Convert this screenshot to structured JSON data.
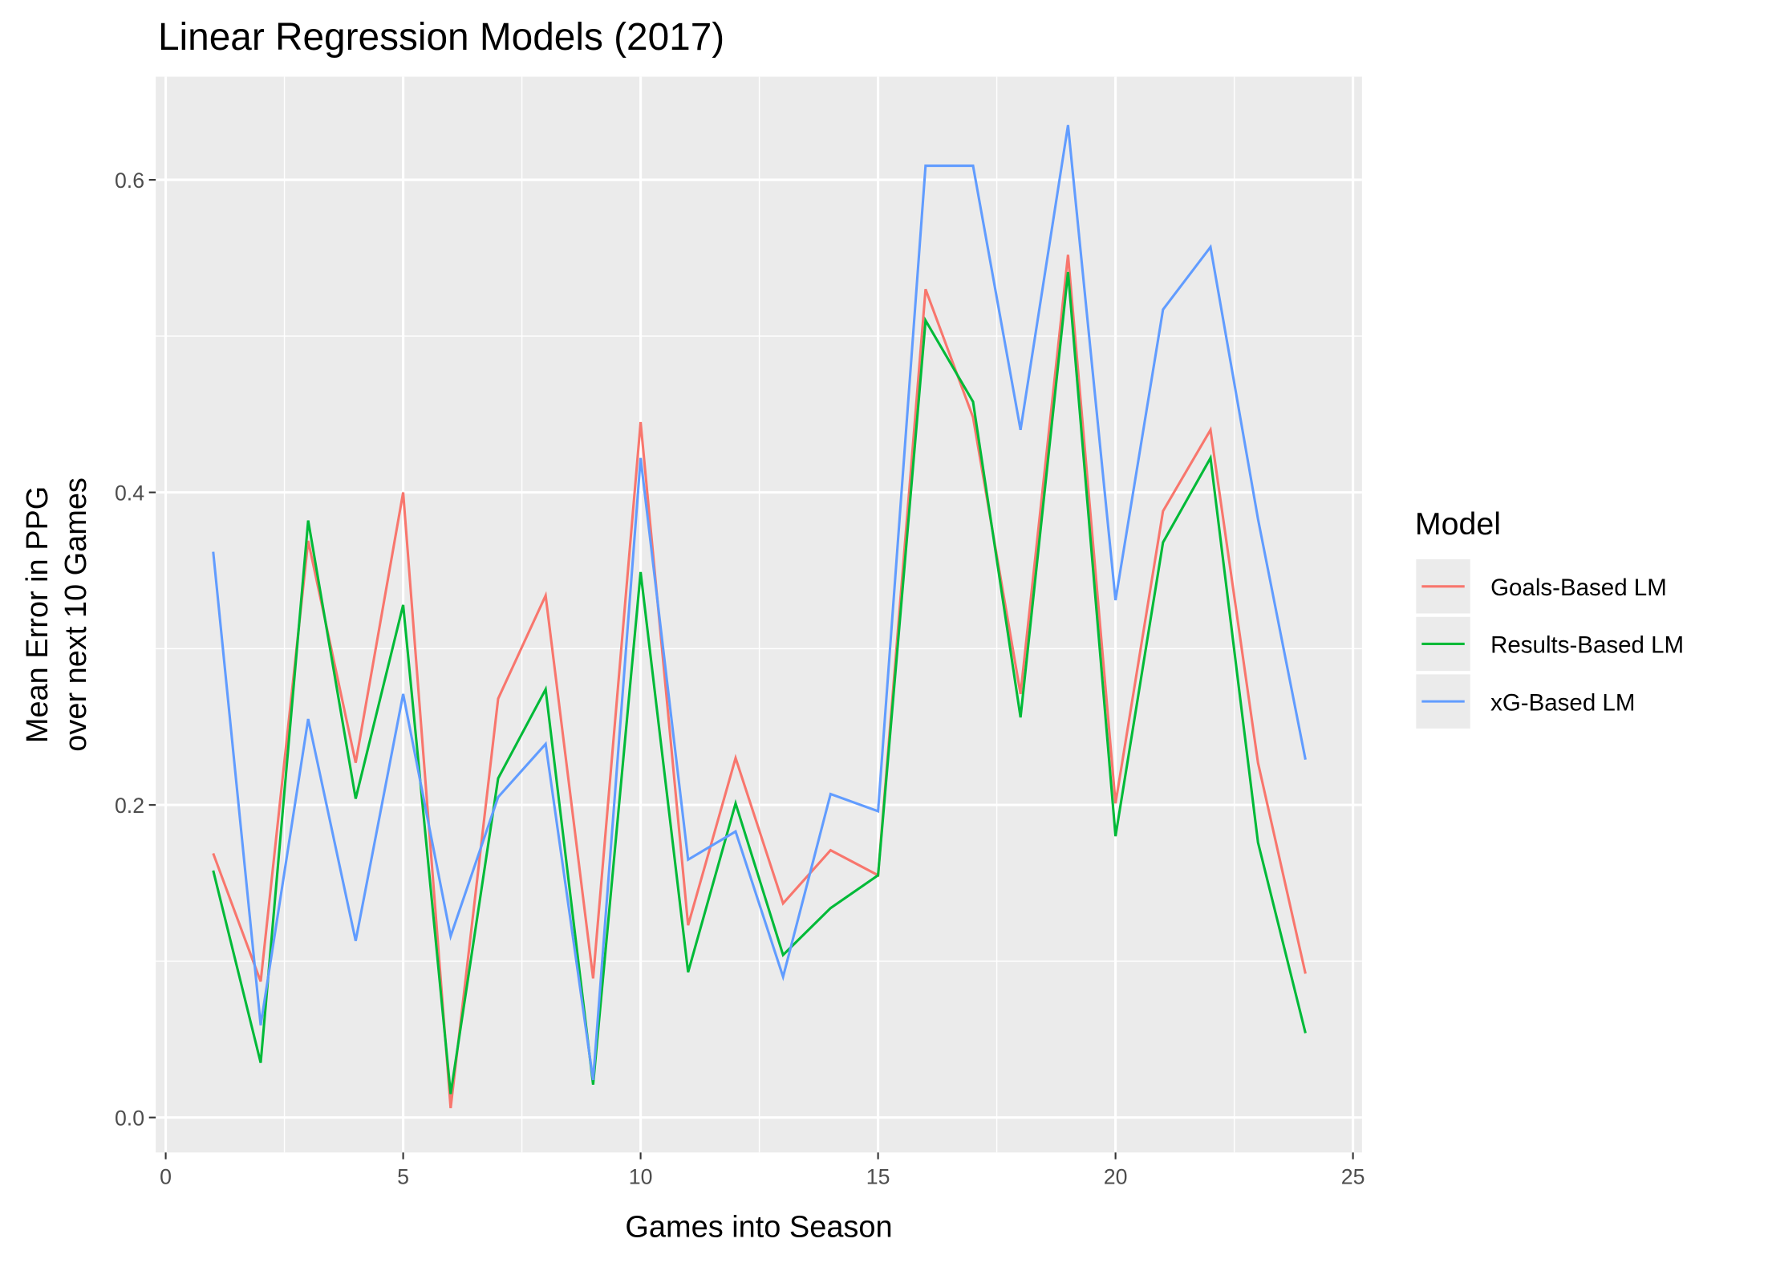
{
  "chart_data": {
    "type": "line",
    "title": "Linear Regression Models (2017)",
    "xlabel": "Games into Season",
    "ylabel": [
      "Mean Error in PPG",
      "over next 10 Games"
    ],
    "legend_title": "Model",
    "legend_position": "right",
    "grid": true,
    "x": [
      1,
      2,
      3,
      4,
      5,
      6,
      7,
      8,
      9,
      10,
      11,
      12,
      13,
      14,
      15,
      16,
      17,
      18,
      19,
      20,
      21,
      22,
      23,
      24
    ],
    "series": [
      {
        "name": "Goals-Based LM",
        "color": "#f8766d",
        "values": [
          0.169,
          0.087,
          0.369,
          0.227,
          0.4,
          0.006,
          0.268,
          0.334,
          0.089,
          0.445,
          0.123,
          0.23,
          0.137,
          0.171,
          0.155,
          0.53,
          0.448,
          0.271,
          0.552,
          0.201,
          0.388,
          0.44,
          0.227,
          0.092
        ]
      },
      {
        "name": "Results-Based LM",
        "color": "#00ba38",
        "values": [
          0.158,
          0.035,
          0.382,
          0.204,
          0.328,
          0.015,
          0.217,
          0.274,
          0.021,
          0.349,
          0.093,
          0.201,
          0.104,
          0.134,
          0.155,
          0.51,
          0.458,
          0.256,
          0.541,
          0.18,
          0.368,
          0.422,
          0.176,
          0.054
        ]
      },
      {
        "name": "xG-Based LM",
        "color": "#619cff",
        "values": [
          0.362,
          0.059,
          0.255,
          0.113,
          0.271,
          0.116,
          0.205,
          0.239,
          0.024,
          0.422,
          0.165,
          0.183,
          0.09,
          0.207,
          0.196,
          0.609,
          0.609,
          0.44,
          0.635,
          0.331,
          0.517,
          0.557,
          0.383,
          0.229
        ]
      }
    ],
    "xlim": [
      -0.21,
      25.19
    ],
    "ylim": [
      -0.0224,
      0.666
    ],
    "xticks": [
      0,
      5,
      10,
      15,
      20,
      25
    ],
    "yticks": [
      {
        "value": 0,
        "label": "0.0"
      },
      0.2,
      0.4,
      0.6
    ],
    "x_minor_breaks": [
      2.5,
      7.5,
      12.5,
      17.5,
      22.5
    ],
    "y_minor_breaks": [
      0.1,
      0.3,
      0.5
    ]
  }
}
